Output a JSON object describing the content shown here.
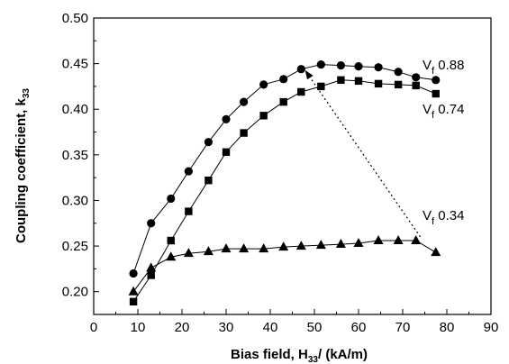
{
  "chart_data": {
    "type": "scatter",
    "title": "",
    "xlabel": {
      "main": "Bias field, H",
      "sub": "33",
      "suffix": "/ (kA/m)"
    },
    "ylabel": {
      "main": "Coupling coefficient, k",
      "sub": "33"
    },
    "xlim": [
      0,
      90
    ],
    "ylim": [
      0.175,
      0.5
    ],
    "xticks": [
      "0",
      "10",
      "20",
      "30",
      "40",
      "50",
      "60",
      "70",
      "80",
      "90"
    ],
    "yticks": [
      "0.20",
      "0.25",
      "0.30",
      "0.35",
      "0.40",
      "0.45",
      "0.50"
    ],
    "grid": false,
    "series": [
      {
        "label": {
          "v": "V",
          "sub": "f",
          "value": "0.88"
        },
        "marker": "circle",
        "x": [
          9,
          13,
          17.5,
          21.5,
          26,
          30,
          34,
          38.5,
          43,
          47,
          51.5,
          56,
          60,
          64.5,
          69,
          73,
          77.5
        ],
        "y": [
          0.22,
          0.275,
          0.302,
          0.332,
          0.364,
          0.389,
          0.408,
          0.427,
          0.433,
          0.444,
          0.449,
          0.448,
          0.447,
          0.446,
          0.441,
          0.435,
          0.432
        ]
      },
      {
        "label": {
          "v": "V",
          "sub": "f",
          "value": "0.74"
        },
        "marker": "square",
        "x": [
          9,
          13,
          17.5,
          21.5,
          26,
          30,
          34,
          38.5,
          43,
          47,
          51.5,
          56,
          60,
          64.5,
          69,
          73,
          77.5
        ],
        "y": [
          0.189,
          0.218,
          0.256,
          0.288,
          0.322,
          0.353,
          0.374,
          0.393,
          0.408,
          0.419,
          0.425,
          0.432,
          0.431,
          0.428,
          0.427,
          0.426,
          0.417
        ]
      },
      {
        "label": {
          "v": "V",
          "sub": "f",
          "value": "0.34"
        },
        "marker": "triangle",
        "x": [
          9,
          13,
          17.5,
          21.5,
          26,
          30,
          34,
          38.5,
          43,
          47,
          51.5,
          56,
          60,
          64.5,
          69,
          73,
          77.5
        ],
        "y": [
          0.2,
          0.226,
          0.238,
          0.242,
          0.244,
          0.247,
          0.247,
          0.247,
          0.249,
          0.25,
          0.251,
          0.252,
          0.253,
          0.256,
          0.256,
          0.256,
          0.243
        ]
      }
    ],
    "annotation": {
      "type": "dotted-arrow",
      "from": [
        74,
        0.26
      ],
      "to": [
        48,
        0.442
      ]
    }
  }
}
